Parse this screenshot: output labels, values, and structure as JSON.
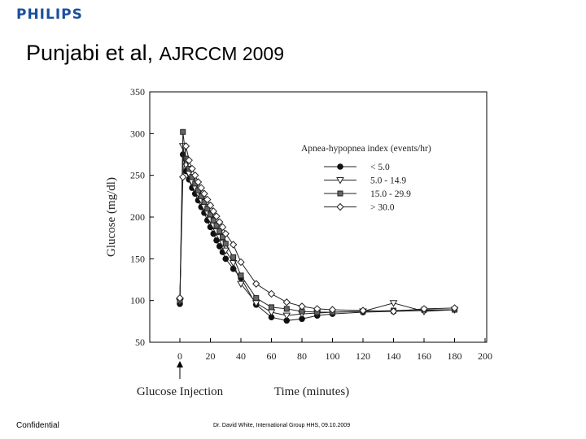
{
  "header": {
    "logo": "PHILIPS",
    "title": "Punjabi et al,",
    "citation": "AJRCCM 2009"
  },
  "footer": {
    "left": "Confidential",
    "right": "Dr. David White, International Group HHS, 09.10.2009"
  },
  "chart_data": {
    "type": "line",
    "xlabel": "Time (minutes)",
    "ylabel": "Glucose (mg/dl)",
    "xlim": [
      0,
      200
    ],
    "ylim": [
      50,
      350
    ],
    "xticks": [
      0,
      20,
      40,
      60,
      80,
      100,
      120,
      140,
      160,
      180,
      200
    ],
    "yticks": [
      50,
      100,
      150,
      200,
      250,
      300,
      350
    ],
    "grid": false,
    "legend_title": "Apnea-hypopnea index (events/hr)",
    "legend_position": "top-right",
    "annotation": "Glucose Injection",
    "series": [
      {
        "name": "< 5.0",
        "marker": "circle-filled",
        "x": [
          0,
          2,
          4,
          6,
          8,
          10,
          12,
          14,
          16,
          18,
          20,
          22,
          24,
          26,
          28,
          30,
          35,
          40,
          50,
          60,
          70,
          80,
          90,
          100,
          120,
          140,
          160,
          180
        ],
        "y": [
          96,
          275,
          255,
          245,
          235,
          228,
          220,
          212,
          205,
          196,
          188,
          180,
          172,
          165,
          158,
          150,
          138,
          127,
          95,
          80,
          76,
          78,
          82,
          84,
          86,
          87,
          88,
          89
        ]
      },
      {
        "name": "5.0 - 14.9",
        "marker": "triangle-down-open",
        "x": [
          0,
          2,
          4,
          6,
          8,
          10,
          12,
          14,
          16,
          18,
          20,
          22,
          24,
          26,
          28,
          30,
          35,
          40,
          50,
          60,
          70,
          80,
          90,
          100,
          120,
          140,
          160,
          180
        ],
        "y": [
          99,
          285,
          262,
          252,
          242,
          235,
          228,
          220,
          212,
          205,
          197,
          190,
          183,
          176,
          169,
          160,
          145,
          120,
          97,
          86,
          82,
          84,
          85,
          86,
          87,
          97,
          87,
          89
        ]
      },
      {
        "name": "15.0 - 29.9",
        "marker": "square-filled",
        "x": [
          0,
          2,
          4,
          6,
          8,
          10,
          12,
          14,
          16,
          18,
          20,
          22,
          24,
          26,
          28,
          30,
          35,
          40,
          50,
          60,
          70,
          80,
          90,
          100,
          120,
          140,
          160,
          180
        ],
        "y": [
          100,
          302,
          270,
          258,
          248,
          240,
          232,
          225,
          218,
          210,
          203,
          196,
          190,
          183,
          176,
          168,
          152,
          130,
          103,
          92,
          90,
          87,
          86,
          86,
          87,
          88,
          89,
          89
        ]
      },
      {
        "name": "> 30.0",
        "marker": "diamond-open",
        "x": [
          0,
          2,
          4,
          6,
          8,
          10,
          12,
          14,
          16,
          18,
          20,
          22,
          24,
          26,
          28,
          30,
          35,
          40,
          50,
          60,
          70,
          80,
          90,
          100,
          120,
          140,
          160,
          180
        ],
        "y": [
          103,
          248,
          285,
          268,
          258,
          250,
          242,
          235,
          228,
          221,
          214,
          207,
          201,
          194,
          188,
          180,
          167,
          146,
          120,
          108,
          98,
          93,
          90,
          89,
          88,
          87,
          90,
          91
        ]
      }
    ]
  }
}
